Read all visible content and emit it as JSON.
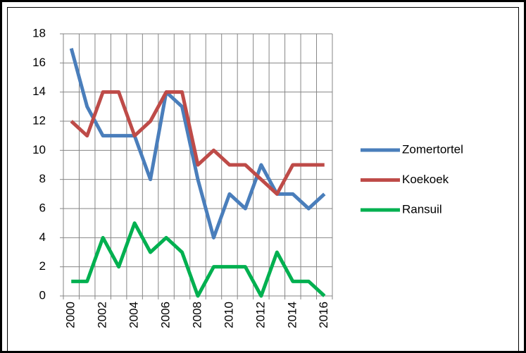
{
  "chart_data": {
    "type": "line",
    "categories": [
      "2000",
      null,
      "2002",
      null,
      "2004",
      null,
      "2006",
      null,
      "2008",
      null,
      "2010",
      null,
      "2012",
      null,
      "2014",
      null,
      "2016"
    ],
    "series": [
      {
        "name": "Zomertortel",
        "color": "#4a7ebb",
        "values": [
          17,
          13,
          11,
          11,
          11,
          8,
          14,
          13,
          8,
          4,
          7,
          6,
          9,
          7,
          7,
          6,
          7
        ]
      },
      {
        "name": "Koekoek",
        "color": "#be4b48",
        "values": [
          12,
          11,
          14,
          14,
          11,
          12,
          14,
          14,
          9,
          10,
          9,
          9,
          8,
          7,
          9,
          9,
          9
        ]
      },
      {
        "name": "Ransuil",
        "color": "#00b050",
        "values": [
          1,
          1,
          4,
          2,
          5,
          3,
          4,
          3,
          0,
          2,
          2,
          2,
          0,
          3,
          1,
          1,
          0
        ]
      }
    ],
    "ylim": [
      0,
      18
    ],
    "yticks": [
      0,
      2,
      4,
      6,
      8,
      10,
      12,
      14,
      16,
      18
    ],
    "grid": true,
    "legend": "right"
  }
}
